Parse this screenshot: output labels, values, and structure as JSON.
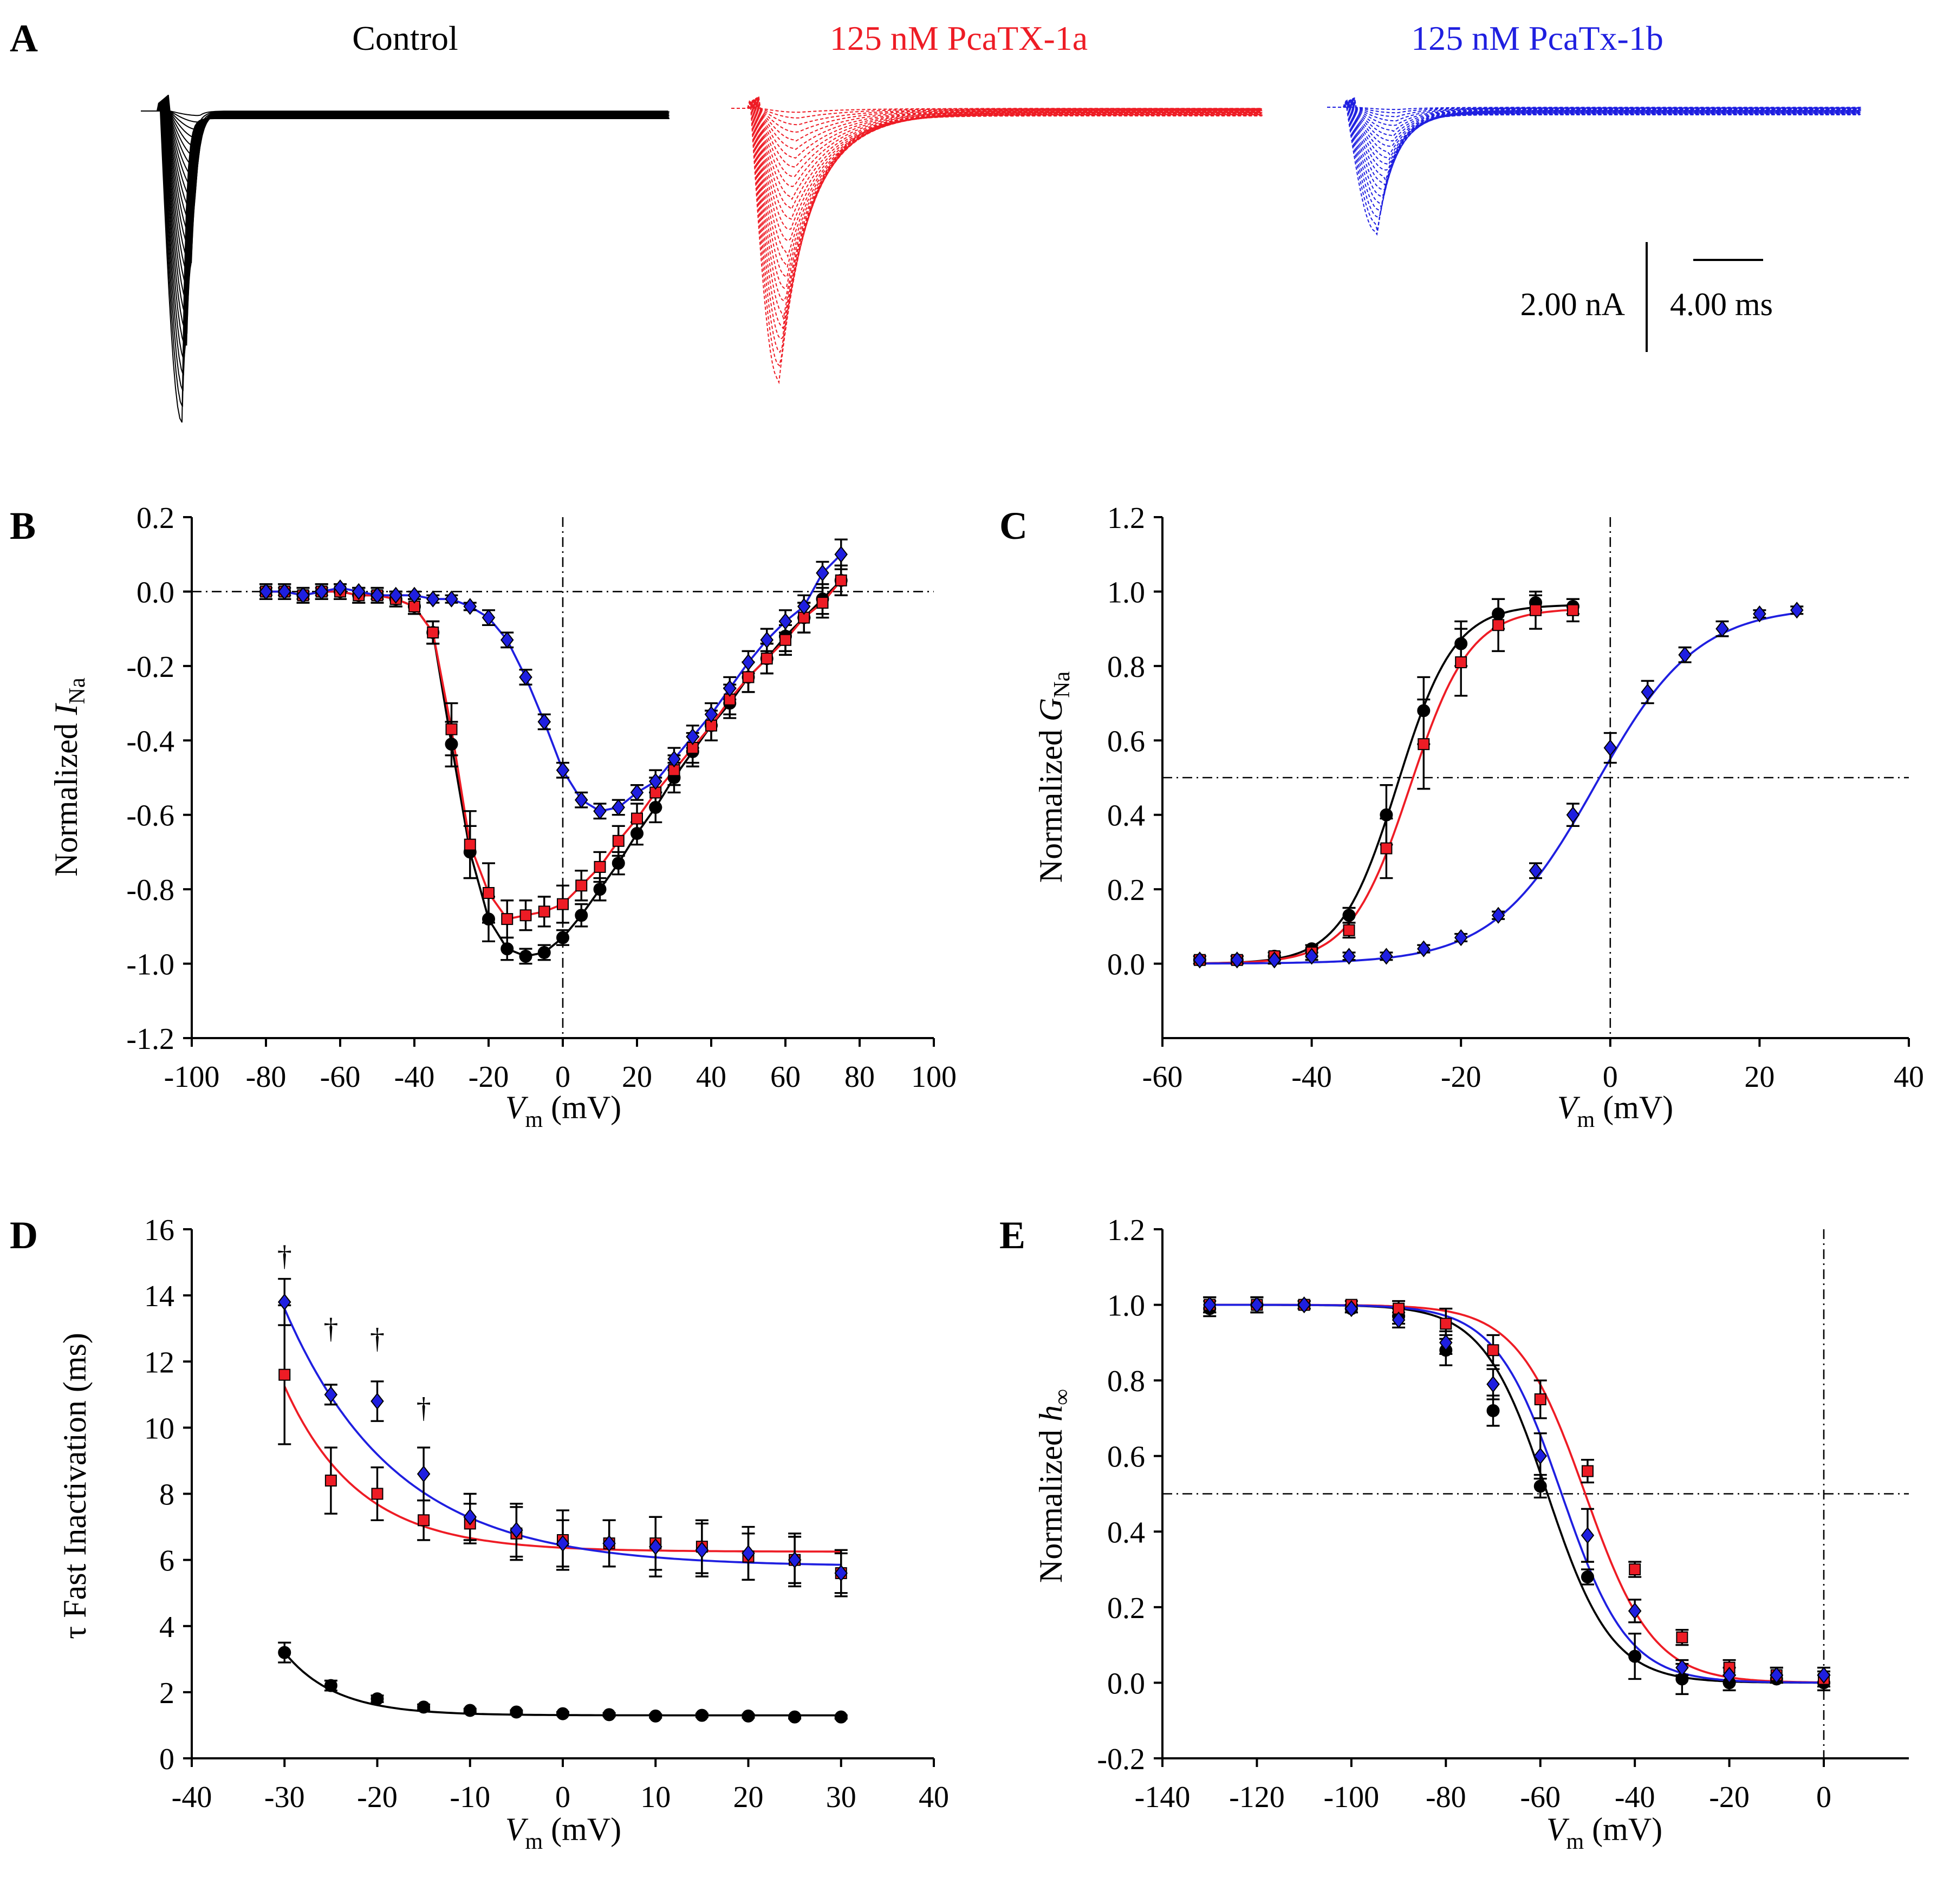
{
  "colors": {
    "control": "#000000",
    "pca1a": "#ee1c25",
    "pca1b": "#1f1fe0"
  },
  "panel_a": {
    "letter": "A",
    "titles": [
      "Control",
      "125 nM PcaTX-1a",
      "125 nM PcaTx-1b"
    ],
    "scale_current": "2.00 nA",
    "scale_time": "4.00 ms",
    "peak_amplitudes": [
      1.0,
      0.86,
      0.39
    ]
  },
  "chart_data": [
    {
      "id": "B",
      "type": "scatter",
      "panel": "B",
      "xlabel_italic": "V",
      "xlabel_sub": "m",
      "xlabel_rest": " (mV)",
      "ylabel_main": "Normalized ",
      "ylabel_italic": "I",
      "ylabel_sub": "Na",
      "xlim": [
        -100,
        100
      ],
      "ylim": [
        -1.2,
        0.2
      ],
      "xticks": [
        "-100",
        "-80",
        "-60",
        "-40",
        "-20",
        "0",
        "20",
        "40",
        "60",
        "80",
        "100"
      ],
      "yticks": [
        "0.2",
        "0.0",
        "-0.2",
        "-0.4",
        "-0.6",
        "-0.8",
        "-1.0",
        "-1.2"
      ],
      "ref_lines": {
        "x": 0,
        "y": 0
      },
      "series": [
        {
          "name": "Control",
          "marker": "circle",
          "color": "#000000",
          "x": [
            -80,
            -75,
            -70,
            -65,
            -60,
            -55,
            -50,
            -45,
            -40,
            -35,
            -30,
            -25,
            -20,
            -15,
            -10,
            -5,
            0,
            5,
            10,
            15,
            20,
            25,
            30,
            35,
            40,
            45,
            50,
            55,
            60,
            65,
            70,
            75
          ],
          "y": [
            0.0,
            0.0,
            -0.01,
            0.0,
            0.0,
            -0.01,
            -0.01,
            -0.02,
            -0.04,
            -0.11,
            -0.41,
            -0.7,
            -0.88,
            -0.96,
            -0.98,
            -0.97,
            -0.93,
            -0.87,
            -0.8,
            -0.73,
            -0.65,
            -0.58,
            -0.5,
            -0.43,
            -0.36,
            -0.3,
            -0.23,
            -0.18,
            -0.12,
            -0.07,
            -0.02,
            0.03
          ],
          "err": [
            0.02,
            0.02,
            0.02,
            0.02,
            0.02,
            0.02,
            0.02,
            0.02,
            0.02,
            0.03,
            0.06,
            0.07,
            0.06,
            0.03,
            0.02,
            0.02,
            0.02,
            0.03,
            0.03,
            0.03,
            0.03,
            0.04,
            0.04,
            0.04,
            0.04,
            0.04,
            0.04,
            0.04,
            0.04,
            0.04,
            0.04,
            0.04
          ]
        },
        {
          "name": "125 nM PcaTX-1a",
          "marker": "square",
          "color": "#ee1c25",
          "x": [
            -80,
            -75,
            -70,
            -65,
            -60,
            -55,
            -50,
            -45,
            -40,
            -35,
            -30,
            -25,
            -20,
            -15,
            -10,
            -5,
            0,
            5,
            10,
            15,
            20,
            25,
            30,
            35,
            40,
            45,
            50,
            55,
            60,
            65,
            70,
            75
          ],
          "y": [
            0.0,
            0.0,
            -0.01,
            0.0,
            0.0,
            -0.01,
            -0.01,
            -0.02,
            -0.04,
            -0.11,
            -0.37,
            -0.68,
            -0.81,
            -0.88,
            -0.87,
            -0.86,
            -0.84,
            -0.79,
            -0.74,
            -0.67,
            -0.61,
            -0.54,
            -0.48,
            -0.42,
            -0.36,
            -0.29,
            -0.23,
            -0.18,
            -0.13,
            -0.07,
            -0.03,
            0.03
          ],
          "err": [
            0.02,
            0.02,
            0.02,
            0.02,
            0.02,
            0.02,
            0.02,
            0.02,
            0.02,
            0.03,
            0.07,
            0.09,
            0.08,
            0.05,
            0.04,
            0.04,
            0.05,
            0.04,
            0.04,
            0.04,
            0.04,
            0.04,
            0.04,
            0.04,
            0.04,
            0.04,
            0.04,
            0.04,
            0.04,
            0.04,
            0.04,
            0.04
          ]
        },
        {
          "name": "125 nM PcaTx-1b",
          "marker": "diamond",
          "color": "#1f1fe0",
          "x": [
            -80,
            -75,
            -70,
            -65,
            -60,
            -55,
            -50,
            -45,
            -40,
            -35,
            -30,
            -25,
            -20,
            -15,
            -10,
            -5,
            0,
            5,
            10,
            15,
            20,
            25,
            30,
            35,
            40,
            45,
            50,
            55,
            60,
            65,
            70,
            75
          ],
          "y": [
            0.0,
            0.0,
            -0.01,
            0.0,
            0.01,
            0.0,
            -0.01,
            -0.01,
            -0.01,
            -0.02,
            -0.02,
            -0.04,
            -0.07,
            -0.13,
            -0.23,
            -0.35,
            -0.48,
            -0.56,
            -0.59,
            -0.58,
            -0.54,
            -0.51,
            -0.45,
            -0.39,
            -0.33,
            -0.26,
            -0.19,
            -0.13,
            -0.08,
            -0.04,
            0.05,
            0.1
          ],
          "err": [
            0.01,
            0.01,
            0.01,
            0.01,
            0.01,
            0.01,
            0.01,
            0.01,
            0.01,
            0.01,
            0.01,
            0.01,
            0.02,
            0.02,
            0.02,
            0.02,
            0.02,
            0.02,
            0.02,
            0.02,
            0.02,
            0.03,
            0.03,
            0.03,
            0.03,
            0.03,
            0.03,
            0.03,
            0.03,
            0.03,
            0.03,
            0.04
          ]
        }
      ]
    },
    {
      "id": "C",
      "type": "scatter",
      "panel": "C",
      "xlabel_italic": "V",
      "xlabel_sub": "m",
      "xlabel_rest": " (mV)",
      "ylabel_main": "Normalized  ",
      "ylabel_italic": "G",
      "ylabel_sub": "Na",
      "xlim": [
        -60,
        40
      ],
      "ylim": [
        -0.2,
        1.2
      ],
      "xticks": [
        "-60",
        "-40",
        "-20",
        "0",
        "20",
        "40"
      ],
      "yticks": [
        "1.2",
        "1.0",
        "0.8",
        "0.6",
        "0.4",
        "0.2",
        "0.0"
      ],
      "ref_lines": {
        "x": 0,
        "y": 0.5
      },
      "series": [
        {
          "name": "Control",
          "marker": "circle",
          "color": "#000000",
          "x": [
            -55,
            -50,
            -45,
            -40,
            -35,
            -30,
            -25,
            -20,
            -15,
            -10,
            -5
          ],
          "y": [
            0.01,
            0.01,
            0.02,
            0.04,
            0.13,
            0.4,
            0.68,
            0.86,
            0.94,
            0.97,
            0.96
          ],
          "err": [
            0.01,
            0.01,
            0.01,
            0.01,
            0.02,
            0.08,
            0.09,
            0.06,
            0.04,
            0.02,
            0.02
          ],
          "fit": {
            "v_half": -28.5,
            "k": 3.8,
            "gmax": 0.965
          }
        },
        {
          "name": "125 nM PcaTX-1a",
          "marker": "square",
          "color": "#ee1c25",
          "x": [
            -55,
            -50,
            -45,
            -40,
            -35,
            -30,
            -25,
            -20,
            -15,
            -10,
            -5
          ],
          "y": [
            0.01,
            0.01,
            0.02,
            0.03,
            0.09,
            0.31,
            0.59,
            0.81,
            0.91,
            0.95,
            0.95
          ],
          "err": [
            0.01,
            0.01,
            0.01,
            0.01,
            0.02,
            0.08,
            0.12,
            0.09,
            0.07,
            0.05,
            0.03
          ],
          "fit": {
            "v_half": -26.8,
            "k": 4.0,
            "gmax": 0.955
          }
        },
        {
          "name": "125 nM PcaTx-1b",
          "marker": "diamond",
          "color": "#1f1fe0",
          "x": [
            -55,
            -50,
            -45,
            -40,
            -35,
            -30,
            -25,
            -20,
            -15,
            -10,
            -5,
            0,
            5,
            10,
            15,
            20,
            25
          ],
          "y": [
            0.01,
            0.01,
            0.01,
            0.02,
            0.02,
            0.02,
            0.04,
            0.07,
            0.13,
            0.25,
            0.4,
            0.58,
            0.73,
            0.83,
            0.9,
            0.94,
            0.95
          ],
          "err": [
            0.01,
            0.01,
            0.01,
            0.01,
            0.01,
            0.01,
            0.01,
            0.01,
            0.01,
            0.02,
            0.03,
            0.04,
            0.03,
            0.02,
            0.02,
            0.01,
            0.01
          ],
          "fit": {
            "v_half": -2.0,
            "k": 6.8,
            "gmax": 0.96
          }
        }
      ]
    },
    {
      "id": "D",
      "type": "scatter",
      "panel": "D",
      "xlabel_italic": "V",
      "xlabel_sub": "m",
      "xlabel_rest": " (mV)",
      "ylabel_main": "τ Fast Inactivation  (ms)",
      "xlim": [
        -40,
        40
      ],
      "ylim": [
        0,
        16
      ],
      "xticks": [
        "-40",
        "-30",
        "-20",
        "-10",
        "0",
        "10",
        "20",
        "30",
        "40"
      ],
      "yticks": [
        "16",
        "14",
        "12",
        "10",
        "8",
        "6",
        "4",
        "2",
        "0"
      ],
      "dagger_symbol": "†",
      "dagger_x": [
        -30,
        -25,
        -20,
        -15
      ],
      "dagger_y": [
        15.2,
        13.0,
        12.7,
        10.6
      ],
      "series": [
        {
          "name": "Control",
          "marker": "circle",
          "color": "#000000",
          "x": [
            -30,
            -25,
            -20,
            -15,
            -10,
            -5,
            0,
            5,
            10,
            15,
            20,
            25,
            30
          ],
          "y": [
            3.2,
            2.2,
            1.8,
            1.55,
            1.45,
            1.4,
            1.35,
            1.32,
            1.28,
            1.3,
            1.28,
            1.25,
            1.25
          ],
          "err": [
            0.3,
            0.15,
            0.1,
            0.08,
            0.05,
            0.05,
            0.05,
            0.05,
            0.05,
            0.05,
            0.05,
            0.05,
            0.05
          ],
          "fit": {
            "a": 1.3,
            "b": 1.9,
            "tau": 5.5
          }
        },
        {
          "name": "125 nM PcaTX-1a",
          "marker": "square",
          "color": "#ee1c25",
          "x": [
            -30,
            -25,
            -20,
            -15,
            -10,
            -5,
            0,
            5,
            10,
            15,
            20,
            25,
            30
          ],
          "y": [
            11.6,
            8.4,
            8.0,
            7.2,
            7.1,
            6.8,
            6.6,
            6.5,
            6.5,
            6.4,
            6.1,
            6.0,
            5.6
          ],
          "err": [
            2.1,
            1.0,
            0.8,
            0.6,
            0.6,
            0.8,
            0.9,
            0.7,
            0.8,
            0.8,
            0.7,
            0.8,
            0.7
          ],
          "fit": {
            "a": 6.25,
            "b": 5.0,
            "tau": 8.0
          }
        },
        {
          "name": "125 nM PcaTx-1b",
          "marker": "diamond",
          "color": "#1f1fe0",
          "x": [
            -30,
            -25,
            -20,
            -15,
            -10,
            -5,
            0,
            5,
            10,
            15,
            20,
            25,
            30
          ],
          "y": [
            13.8,
            11.0,
            10.8,
            8.6,
            7.3,
            6.9,
            6.5,
            6.5,
            6.4,
            6.3,
            6.2,
            6.0,
            5.6
          ],
          "err": [
            0.7,
            0.3,
            0.6,
            0.8,
            0.7,
            0.8,
            0.7,
            0.7,
            0.9,
            0.8,
            0.8,
            0.7,
            0.6
          ],
          "fit": {
            "a": 5.8,
            "b": 7.8,
            "tau": 12.0
          }
        }
      ]
    },
    {
      "id": "E",
      "type": "scatter",
      "panel": "E",
      "xlabel_italic": "V",
      "xlabel_sub": "m",
      "xlabel_rest": " (mV)",
      "ylabel_main": "Normalized ",
      "ylabel_italic": "h",
      "ylabel_sub": "∞",
      "xlim": [
        -140,
        18
      ],
      "ylim": [
        -0.2,
        1.2
      ],
      "xticks": [
        "-140",
        "-120",
        "-100",
        "-80",
        "-60",
        "-40",
        "-20",
        "0"
      ],
      "yticks": [
        "1.2",
        "1.0",
        "0.8",
        "0.6",
        "0.4",
        "0.2",
        "0.0",
        "-0.2"
      ],
      "ref_lines": {
        "x": 0,
        "y": 0.5
      },
      "series": [
        {
          "name": "Control",
          "marker": "circle",
          "color": "#000000",
          "x": [
            -130,
            -120,
            -110,
            -100,
            -90,
            -80,
            -70,
            -60,
            -50,
            -40,
            -30,
            -20,
            -10,
            0
          ],
          "y": [
            0.99,
            1.0,
            1.0,
            0.99,
            0.97,
            0.88,
            0.72,
            0.52,
            0.28,
            0.07,
            0.01,
            0.0,
            0.01,
            0.0
          ],
          "err": [
            0.02,
            0.02,
            0.01,
            0.01,
            0.02,
            0.04,
            0.04,
            0.03,
            0.02,
            0.06,
            0.04,
            0.02,
            0.01,
            0.02
          ],
          "fit": {
            "v_half": -58.5,
            "k": 6.8
          }
        },
        {
          "name": "125 nM PcaTX-1a",
          "marker": "square",
          "color": "#ee1c25",
          "x": [
            -130,
            -120,
            -110,
            -100,
            -90,
            -80,
            -70,
            -60,
            -50,
            -40,
            -30,
            -20,
            -10,
            0
          ],
          "y": [
            1.0,
            1.0,
            1.0,
            1.0,
            0.99,
            0.95,
            0.88,
            0.75,
            0.56,
            0.3,
            0.12,
            0.04,
            0.02,
            0.01
          ],
          "err": [
            0.02,
            0.02,
            0.01,
            0.01,
            0.02,
            0.04,
            0.04,
            0.05,
            0.03,
            0.02,
            0.02,
            0.02,
            0.02,
            0.02
          ],
          "fit": {
            "v_half": -50.5,
            "k": 7.2
          }
        },
        {
          "name": "125 nM PcaTx-1b",
          "marker": "diamond",
          "color": "#1f1fe0",
          "x": [
            -130,
            -120,
            -110,
            -100,
            -90,
            -80,
            -70,
            -60,
            -50,
            -40,
            -30,
            -20,
            -10,
            0
          ],
          "y": [
            1.0,
            1.0,
            1.0,
            0.99,
            0.96,
            0.9,
            0.79,
            0.6,
            0.39,
            0.19,
            0.04,
            0.02,
            0.02,
            0.02
          ],
          "err": [
            0.02,
            0.02,
            0.01,
            0.01,
            0.02,
            0.03,
            0.04,
            0.06,
            0.07,
            0.03,
            0.02,
            0.02,
            0.02,
            0.02
          ],
          "fit": {
            "v_half": -55.5,
            "k": 7.0
          }
        }
      ]
    }
  ]
}
